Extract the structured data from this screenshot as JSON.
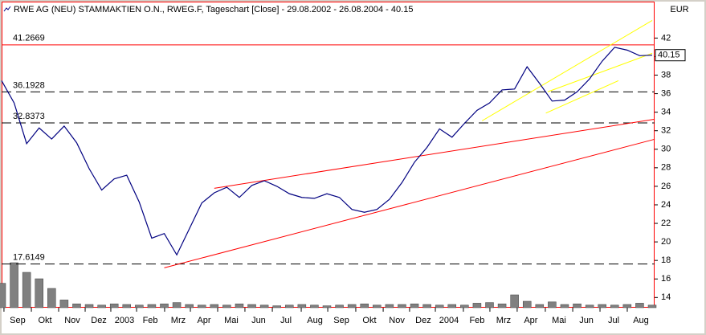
{
  "chart_data": {
    "type": "line",
    "title": "RWE AG (NEU) STAMMAKTIEN O.N., RWEG.F, Tageschart [Close] - 29.08.2002 - 26.08.2004 - 40.15",
    "currency": "EUR",
    "last_value": 40.15,
    "color": "#000080",
    "values": [
      37.4,
      35,
      30.6,
      32.3,
      31.1,
      32.5,
      30.7,
      27.9,
      25.6,
      26.8,
      27.2,
      24.3,
      20.4,
      20.9,
      18.6,
      21.4,
      24.2,
      25.3,
      25.9,
      24.8,
      26.1,
      26.6,
      26,
      25.2,
      24.8,
      24.7,
      25.2,
      24.8,
      23.5,
      23.2,
      23.5,
      24.6,
      26.4,
      28.6,
      30.2,
      32.2,
      31.3,
      32.8,
      34.2,
      35,
      36.4,
      36.5,
      38.9,
      37.1,
      35.2,
      35.3,
      36.2,
      37.6,
      39.5,
      41,
      40.7,
      40.1,
      40.15
    ],
    "xlim": [
      0,
      52
    ],
    "ylim": [
      12.9,
      44.2
    ],
    "yticks": [
      14,
      16,
      18,
      20,
      22,
      24,
      26,
      28,
      30,
      32,
      34,
      36,
      38,
      40,
      42
    ],
    "xticks": [
      {
        "value": 1.28,
        "label": "Sep"
      },
      {
        "value": 3.47,
        "label": "Okt"
      },
      {
        "value": 5.65,
        "label": "Nov"
      },
      {
        "value": 7.77,
        "label": "Dez"
      },
      {
        "value": 9.82,
        "label": "2003"
      },
      {
        "value": 11.88,
        "label": "Feb"
      },
      {
        "value": 14.12,
        "label": "Mrz"
      },
      {
        "value": 16.18,
        "label": "Apr"
      },
      {
        "value": 18.36,
        "label": "Mai"
      },
      {
        "value": 20.54,
        "label": "Jun"
      },
      {
        "value": 22.73,
        "label": "Jul"
      },
      {
        "value": 25.04,
        "label": "Aug"
      },
      {
        "value": 27.16,
        "label": "Sep"
      },
      {
        "value": 29.4,
        "label": "Okt"
      },
      {
        "value": 31.59,
        "label": "Nov"
      },
      {
        "value": 33.7,
        "label": "Dez"
      },
      {
        "value": 35.76,
        "label": "2004"
      },
      {
        "value": 38.0,
        "label": "Feb"
      },
      {
        "value": 40.12,
        "label": "Mrz"
      },
      {
        "value": 42.3,
        "label": "Apr"
      },
      {
        "value": 44.55,
        "label": "Mai"
      },
      {
        "value": 46.74,
        "label": "Jun"
      },
      {
        "value": 48.92,
        "label": "Jul"
      },
      {
        "value": 51.1,
        "label": "Aug"
      }
    ],
    "hlines": [
      {
        "value": 41.2669,
        "color": "#ff0000",
        "dashed": false
      },
      {
        "value": 36.1928,
        "color": "#000000",
        "dashed": true
      },
      {
        "value": 32.8373,
        "color": "#000000",
        "dashed": true
      },
      {
        "value": 17.6149,
        "color": "#000000",
        "dashed": true
      }
    ],
    "trendlines": [
      {
        "color": "#ff0000",
        "x": [
          17.0,
          52.2
        ],
        "y": [
          25.79,
          33.24
        ]
      },
      {
        "color": "#ff0000",
        "x": [
          13.0,
          52.2
        ],
        "y": [
          17.2,
          31.08
        ]
      },
      {
        "color": "#ffff00",
        "x": [
          38.4,
          52.0
        ],
        "y": [
          33.07,
          43.9
        ]
      },
      {
        "color": "#ffff00",
        "x": [
          43.65,
          52.0
        ],
        "y": [
          36.2,
          40.35
        ]
      },
      {
        "color": "#ffff00",
        "x": [
          43.5,
          49.3
        ],
        "y": [
          33.9,
          37.4
        ]
      }
    ],
    "volume": {
      "color": "#808080",
      "ylim": [
        0,
        100
      ],
      "values": [
        38,
        70,
        55,
        45,
        30,
        12,
        6,
        5,
        4,
        6,
        5,
        4,
        5,
        6,
        8,
        5,
        4,
        5,
        4,
        6,
        5,
        4,
        3,
        4,
        5,
        4,
        3,
        4,
        5,
        6,
        4,
        5,
        5,
        6,
        5,
        4,
        5,
        4,
        7,
        8,
        6,
        20,
        10,
        5,
        9,
        5,
        6,
        4,
        5,
        4,
        5,
        7,
        4
      ]
    }
  }
}
